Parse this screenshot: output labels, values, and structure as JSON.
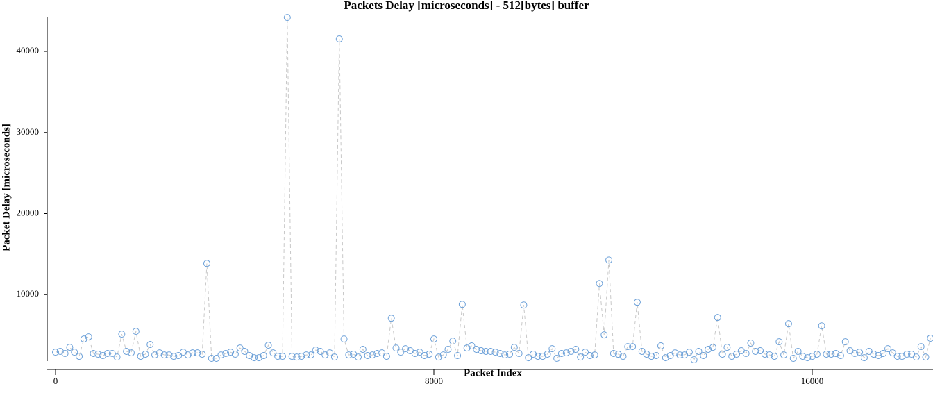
{
  "chart_data": {
    "type": "scatter",
    "title": "Packets Delay [microseconds] - 512[bytes] buffer",
    "x_label": "Packet Index",
    "y_label": "Packet Delay [microseconds]",
    "color": "#6a9fd8",
    "line_color": "#c8c8c8",
    "xlim": [
      -176,
      18554
    ],
    "ylim": [
      770,
      44200
    ],
    "xticks": [
      0,
      8000,
      16000
    ],
    "yticks": [
      10000,
      20000,
      30000,
      40000
    ],
    "x": [
      0,
      100,
      200,
      300,
      400,
      500,
      600,
      700,
      800,
      900,
      1000,
      1100,
      1200,
      1300,
      1400,
      1500,
      1600,
      1700,
      1800,
      1900,
      2000,
      2100,
      2200,
      2300,
      2400,
      2500,
      2600,
      2700,
      2800,
      2900,
      3000,
      3100,
      3200,
      3300,
      3400,
      3500,
      3600,
      3700,
      3800,
      3900,
      4000,
      4100,
      4200,
      4300,
      4400,
      4500,
      4600,
      4700,
      4800,
      4900,
      5000,
      5100,
      5200,
      5300,
      5400,
      5500,
      5600,
      5700,
      5800,
      5900,
      6000,
      6100,
      6200,
      6300,
      6400,
      6500,
      6600,
      6700,
      6800,
      6900,
      7000,
      7100,
      7200,
      7300,
      7400,
      7500,
      7600,
      7700,
      7800,
      7900,
      8000,
      8100,
      8200,
      8300,
      8400,
      8500,
      8600,
      8700,
      8800,
      8900,
      9000,
      9100,
      9200,
      9300,
      9400,
      9500,
      9600,
      9700,
      9800,
      9900,
      10000,
      10100,
      10200,
      10300,
      10400,
      10500,
      10600,
      10700,
      10800,
      10900,
      11000,
      11100,
      11200,
      11300,
      11400,
      11500,
      11600,
      11700,
      11800,
      11900,
      12000,
      12100,
      12200,
      12300,
      12400,
      12500,
      12600,
      12700,
      12800,
      12900,
      13000,
      13100,
      13200,
      13300,
      13400,
      13500,
      13600,
      13700,
      13800,
      13900,
      14000,
      14100,
      14200,
      14300,
      14400,
      14500,
      14600,
      14700,
      14800,
      14900,
      15000,
      15100,
      15200,
      15300,
      15400,
      15500,
      15600,
      15700,
      15800,
      15900,
      16000,
      16100,
      16200,
      16300,
      16400,
      16500,
      16600,
      16700,
      16800,
      16900,
      17000,
      17100,
      17200,
      17300,
      17400,
      17500,
      17600,
      17700,
      17800,
      17900,
      18000,
      18100,
      18200,
      18300,
      18400,
      18500
    ],
    "values": [
      2900,
      3000,
      2740,
      3500,
      2900,
      2390,
      4530,
      4790,
      2740,
      2650,
      2480,
      2740,
      2740,
      2300,
      5130,
      3000,
      2820,
      5470,
      2390,
      2650,
      3850,
      2560,
      2820,
      2560,
      2560,
      2390,
      2480,
      2900,
      2560,
      2820,
      2820,
      2650,
      13850,
      2140,
      2140,
      2560,
      2740,
      2900,
      2650,
      3420,
      3000,
      2480,
      2220,
      2220,
      2480,
      3760,
      2820,
      2390,
      2390,
      44190,
      2390,
      2300,
      2390,
      2560,
      2560,
      3160,
      3000,
      2560,
      2820,
      2300,
      41540,
      4530,
      2560,
      2650,
      2300,
      3250,
      2480,
      2560,
      2740,
      2820,
      2390,
      7090,
      3420,
      2900,
      3330,
      3080,
      2740,
      2900,
      2480,
      2650,
      4530,
      2300,
      2560,
      3250,
      4270,
      2480,
      8800,
      3420,
      3680,
      3250,
      3080,
      3000,
      3000,
      2900,
      2740,
      2560,
      2650,
      3500,
      2740,
      8720,
      2220,
      2650,
      2390,
      2390,
      2650,
      3330,
      2140,
      2740,
      2820,
      3000,
      3250,
      2300,
      2900,
      2480,
      2560,
      11370,
      5040,
      14270,
      2740,
      2650,
      2390,
      3590,
      3590,
      9060,
      3000,
      2650,
      2390,
      2480,
      3680,
      2220,
      2480,
      2820,
      2560,
      2560,
      2900,
      1970,
      3000,
      2480,
      3250,
      3500,
      7180,
      2650,
      3500,
      2390,
      2650,
      3080,
      2740,
      4020,
      3000,
      3080,
      2650,
      2560,
      2390,
      4190,
      2560,
      6410,
      2140,
      3000,
      2390,
      2220,
      2390,
      2650,
      6150,
      2650,
      2650,
      2740,
      2480,
      4190,
      3080,
      2740,
      2900,
      2220,
      3000,
      2650,
      2480,
      2740,
      3330,
      2820,
      2390,
      2390,
      2650,
      2650,
      2300,
      3590,
      2300,
      4620
    ]
  }
}
